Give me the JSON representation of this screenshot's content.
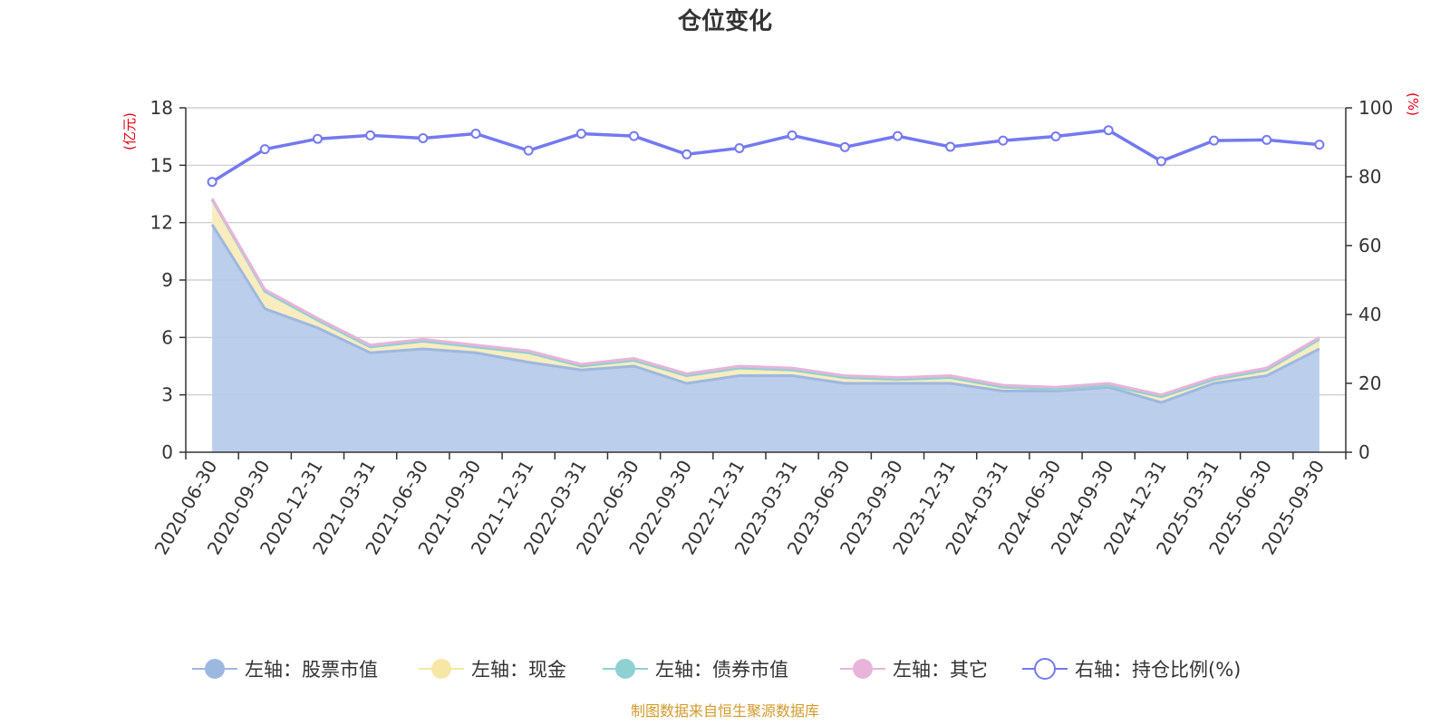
{
  "title": "仓位变化",
  "source": "制图数据来自恒生聚源数据库",
  "chart_data": {
    "type": "area",
    "title": "仓位变化",
    "left_unit": "(亿元)",
    "right_unit": "(%)",
    "left_ylim": [
      0,
      18
    ],
    "left_ticks": [
      "0",
      "3",
      "6",
      "9",
      "12",
      "15",
      "18"
    ],
    "right_ylim": [
      0,
      100
    ],
    "right_ticks": [
      "0",
      "20",
      "40",
      "60",
      "80",
      "100"
    ],
    "grid": true,
    "legend_position": "bottom",
    "categories": [
      "2020-06-30",
      "2020-09-30",
      "2020-12-31",
      "2021-03-31",
      "2021-06-30",
      "2021-09-30",
      "2021-12-31",
      "2022-03-31",
      "2022-06-30",
      "2022-09-30",
      "2022-12-31",
      "2023-03-31",
      "2023-06-30",
      "2023-09-30",
      "2023-12-31",
      "2024-03-31",
      "2024-06-30",
      "2024-09-30",
      "2024-12-31",
      "2025-03-31",
      "2025-06-30",
      "2025-09-30"
    ],
    "series": [
      {
        "name": "左轴：股票市值",
        "axis": "left",
        "stack": true,
        "color": "#9db8e0",
        "fill": "#b7cbea",
        "values": [
          11.9,
          7.5,
          6.5,
          5.2,
          5.4,
          5.2,
          4.7,
          4.3,
          4.5,
          3.6,
          4.0,
          4.0,
          3.6,
          3.6,
          3.6,
          3.2,
          3.2,
          3.4,
          2.6,
          3.6,
          4.0,
          5.4
        ]
      },
      {
        "name": "左轴：现金",
        "axis": "left",
        "stack": true,
        "color": "#f7e7a6",
        "fill": "#f9ecbd",
        "values": [
          1.3,
          0.9,
          0.4,
          0.3,
          0.4,
          0.3,
          0.5,
          0.2,
          0.3,
          0.4,
          0.4,
          0.3,
          0.3,
          0.2,
          0.3,
          0.2,
          0.1,
          0.1,
          0.3,
          0.2,
          0.3,
          0.5
        ]
      },
      {
        "name": "左轴：债券市值",
        "axis": "left",
        "stack": true,
        "color": "#8fd0d3",
        "fill": "#a9dcde",
        "values": [
          0,
          0,
          0,
          0,
          0,
          0,
          0,
          0,
          0,
          0,
          0,
          0,
          0,
          0,
          0,
          0,
          0,
          0,
          0,
          0,
          0,
          0
        ]
      },
      {
        "name": "左轴：其它",
        "axis": "left",
        "stack": true,
        "color": "#e8b4da",
        "fill": "#f1cce8",
        "values": [
          0.05,
          0.1,
          0.1,
          0.1,
          0.1,
          0.1,
          0.1,
          0.1,
          0.1,
          0.1,
          0.1,
          0.1,
          0.1,
          0.1,
          0.1,
          0.1,
          0.1,
          0.1,
          0.1,
          0.1,
          0.1,
          0.1
        ]
      },
      {
        "name": "右轴：持仓比例(%)",
        "axis": "right",
        "stack": false,
        "color": "#7479f0",
        "values": [
          78.5,
          88,
          91,
          92,
          91.2,
          92.5,
          87.6,
          92.5,
          91.8,
          86.5,
          88.3,
          92,
          88.6,
          91.8,
          88.7,
          90.5,
          91.7,
          93.5,
          84.5,
          90.5,
          90.7,
          89.3
        ]
      }
    ]
  }
}
